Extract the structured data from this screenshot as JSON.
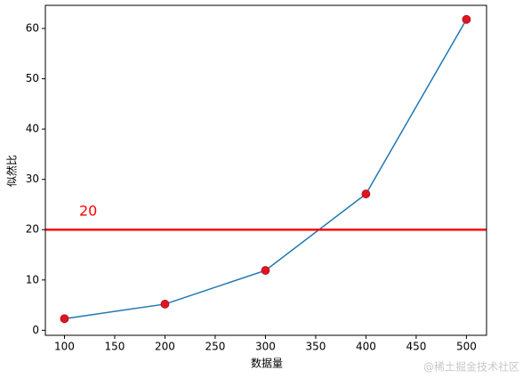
{
  "chart_data": {
    "type": "line",
    "x": [
      100,
      200,
      300,
      400,
      500
    ],
    "series": [
      {
        "values": [
          2.3,
          5.2,
          11.9,
          27.1,
          61.8
        ],
        "color": "#1f77b4",
        "marker_color": "#e0141e"
      }
    ],
    "xlim": [
      81,
      520
    ],
    "ylim": [
      -1.0,
      64.6
    ],
    "xticks": [
      100,
      150,
      200,
      250,
      300,
      350,
      400,
      450,
      500
    ],
    "yticks": [
      0,
      10,
      20,
      30,
      40,
      50,
      60
    ],
    "xlabel": "数据量",
    "ylabel": "似然比",
    "hline": {
      "value": 20,
      "color": "#ff0000",
      "label": "20"
    },
    "watermark": "@稀土掘金技术社区"
  }
}
